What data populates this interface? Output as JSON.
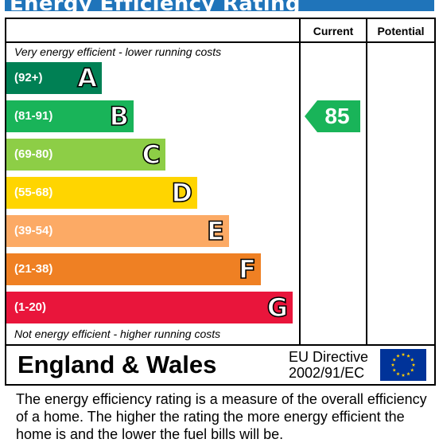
{
  "title": "Energy Efficiency Rating",
  "columns": {
    "current": "Current",
    "potential": "Potential"
  },
  "top_note": "Very energy efficient - lower running costs",
  "bottom_note": "Not energy efficient - higher running costs",
  "bands": [
    {
      "range": "(92+)",
      "letter": "A",
      "color": "#008054"
    },
    {
      "range": "(81-91)",
      "letter": "B",
      "color": "#19b459"
    },
    {
      "range": "(69-80)",
      "letter": "C",
      "color": "#8dce46"
    },
    {
      "range": "(55-68)",
      "letter": "D",
      "color": "#ffd500"
    },
    {
      "range": "(39-54)",
      "letter": "E",
      "color": "#fcaa65"
    },
    {
      "range": "(21-38)",
      "letter": "F",
      "color": "#ef8023"
    },
    {
      "range": "(1-20)",
      "letter": "G",
      "color": "#e9153b"
    }
  ],
  "current_rating": {
    "value": "85",
    "band": "B",
    "color": "#19b459"
  },
  "country": "England & Wales",
  "directive": {
    "line1": "EU Directive",
    "line2": "2002/91/EC"
  },
  "flag": {
    "name": "eu-flag",
    "background": "#003399",
    "stars": "#ffcc00"
  },
  "description": "The energy efficiency rating is a measure of the overall efficiency of a home.  The higher the rating the more energy efficient the home is and the lower the fuel bills will be."
}
